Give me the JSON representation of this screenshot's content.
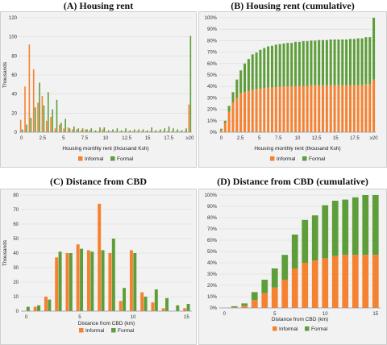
{
  "colors": {
    "informal": "#f58231",
    "formal": "#5e9e3a",
    "grid": "#d9d9d9"
  },
  "legend": {
    "informal": "Informal",
    "formal": "Formal"
  },
  "chart_data": [
    {
      "id": "A",
      "type": "bar",
      "title": "(A) Housing rent",
      "xlabel": "Housing monthly rent (thousand Ksh)",
      "ylabel": "Thousands",
      "ylim": [
        0,
        120
      ],
      "yticks": [
        0,
        20,
        40,
        60,
        80,
        100,
        120
      ],
      "xtick_labels": [
        "0",
        "2.5",
        "5",
        "7.5",
        "10",
        "12.5",
        "15",
        "17.5",
        "≥20"
      ],
      "categories": [
        "0.5",
        "1",
        "1.5",
        "2",
        "2.5",
        "3",
        "3.5",
        "4",
        "4.5",
        "5",
        "5.5",
        "6",
        "6.5",
        "7",
        "7.5",
        "8",
        "8.5",
        "9",
        "9.5",
        "10",
        "10.5",
        "11",
        "11.5",
        "12",
        "12.5",
        "13",
        "13.5",
        "14",
        "14.5",
        "15",
        "15.5",
        "16",
        "16.5",
        "17",
        "17.5",
        "18",
        "18.5",
        "19",
        "19.5",
        "≥20"
      ],
      "series": [
        {
          "name": "Informal",
          "values": [
            13,
            48,
            92,
            66,
            31,
            38,
            12,
            16,
            4,
            8,
            4,
            5,
            3,
            3,
            2,
            3,
            2,
            1,
            1,
            3,
            1,
            1,
            1,
            1,
            1,
            1,
            1,
            1,
            1,
            1,
            1,
            1,
            1,
            1,
            1,
            1,
            1,
            1,
            1,
            29
          ]
        },
        {
          "name": "Formal",
          "values": [
            3,
            8,
            15,
            26,
            52,
            28,
            42,
            24,
            34,
            10,
            14,
            4,
            6,
            4,
            4,
            3,
            4,
            2,
            5,
            5,
            2,
            3,
            4,
            2,
            4,
            2,
            3,
            3,
            3,
            2,
            5,
            2,
            3,
            4,
            6,
            4,
            3,
            2,
            4,
            101
          ]
        }
      ]
    },
    {
      "id": "B",
      "type": "bar",
      "stacked": true,
      "title": "(B) Housing rent (cumulative)",
      "xlabel": "Housing monthly rent (thousand Ksh)",
      "ylabel": "",
      "ylim": [
        0,
        100
      ],
      "yticks": [
        0,
        10,
        20,
        30,
        40,
        50,
        60,
        70,
        80,
        90,
        100
      ],
      "ytick_format": "percent",
      "xtick_labels": [
        "0",
        "2.5",
        "5",
        "7.5",
        "10",
        "12.5",
        "15",
        "17.5",
        "≥20"
      ],
      "categories": [
        "0.5",
        "1",
        "1.5",
        "2",
        "2.5",
        "3",
        "3.5",
        "4",
        "4.5",
        "5",
        "5.5",
        "6",
        "6.5",
        "7",
        "7.5",
        "8",
        "8.5",
        "9",
        "9.5",
        "10",
        "10.5",
        "11",
        "11.5",
        "12",
        "12.5",
        "13",
        "13.5",
        "14",
        "14.5",
        "15",
        "15.5",
        "16",
        "16.5",
        "17",
        "17.5",
        "18",
        "18.5",
        "19",
        "19.5",
        "≥20"
      ],
      "series": [
        {
          "name": "Informal",
          "values": [
            2,
            8,
            18,
            26,
            30,
            34,
            35,
            36,
            37,
            37.5,
            38,
            38.5,
            39,
            39,
            39.5,
            39.5,
            40,
            40,
            40,
            40.5,
            40.5,
            40.5,
            40.5,
            41,
            41,
            41,
            41,
            41,
            41,
            41,
            41,
            41,
            41,
            41,
            41,
            41,
            41,
            42,
            42,
            46
          ]
        },
        {
          "name": "Formal",
          "values": [
            1,
            2,
            5,
            9,
            16,
            20,
            25,
            28,
            31,
            32,
            34,
            35,
            36,
            36.5,
            37,
            37.5,
            37.5,
            38,
            38,
            38.5,
            38.5,
            39,
            39,
            39,
            39,
            39.5,
            39.5,
            39.5,
            40,
            40,
            40,
            40,
            40,
            40.5,
            40.5,
            41,
            41,
            41,
            41,
            54
          ]
        }
      ]
    },
    {
      "id": "C",
      "type": "bar",
      "title": "(C) Distance from CBD",
      "xlabel": "Distance from CBD (km)",
      "ylabel": "Thousands",
      "ylim": [
        0,
        80
      ],
      "yticks": [
        0,
        10,
        20,
        30,
        40,
        50,
        60,
        70,
        80
      ],
      "xtick_labels": [
        "0",
        "5",
        "10",
        "15"
      ],
      "categories": [
        "0",
        "1",
        "2",
        "3",
        "4",
        "5",
        "6",
        "7",
        "8",
        "9",
        "10",
        "11",
        "12",
        "13",
        "14",
        "15"
      ],
      "series": [
        {
          "name": "Informal",
          "values": [
            0,
            3,
            10,
            37,
            40,
            46,
            42,
            74,
            40,
            7,
            42,
            13,
            6,
            2,
            0,
            2
          ]
        },
        {
          "name": "Formal",
          "values": [
            3,
            4,
            8,
            41,
            40,
            43,
            41,
            42,
            50,
            16,
            40,
            10,
            15,
            9,
            4,
            5
          ]
        }
      ]
    },
    {
      "id": "D",
      "type": "bar",
      "stacked": true,
      "title": "(D) Distance from CBD (cumulative)",
      "xlabel": "Distance from CBD (km)",
      "ylabel": "",
      "ylim": [
        0,
        100
      ],
      "yticks": [
        0,
        10,
        20,
        30,
        40,
        50,
        60,
        70,
        80,
        90,
        100
      ],
      "ytick_format": "percent",
      "xtick_labels": [
        "0",
        "5",
        "10",
        "15"
      ],
      "categories": [
        "0",
        "1",
        "2",
        "3",
        "4",
        "5",
        "6",
        "7",
        "8",
        "9",
        "10",
        "11",
        "12",
        "13",
        "14",
        "15"
      ],
      "series": [
        {
          "name": "Informal",
          "values": [
            0,
            0.5,
            2,
            7,
            13,
            18,
            25,
            35,
            40,
            42,
            44,
            46,
            47,
            47,
            47,
            47
          ]
        },
        {
          "name": "Formal",
          "values": [
            0,
            1,
            2,
            7,
            12,
            17,
            22,
            30,
            38,
            40,
            47,
            49,
            49,
            51,
            53,
            53
          ]
        }
      ]
    }
  ]
}
